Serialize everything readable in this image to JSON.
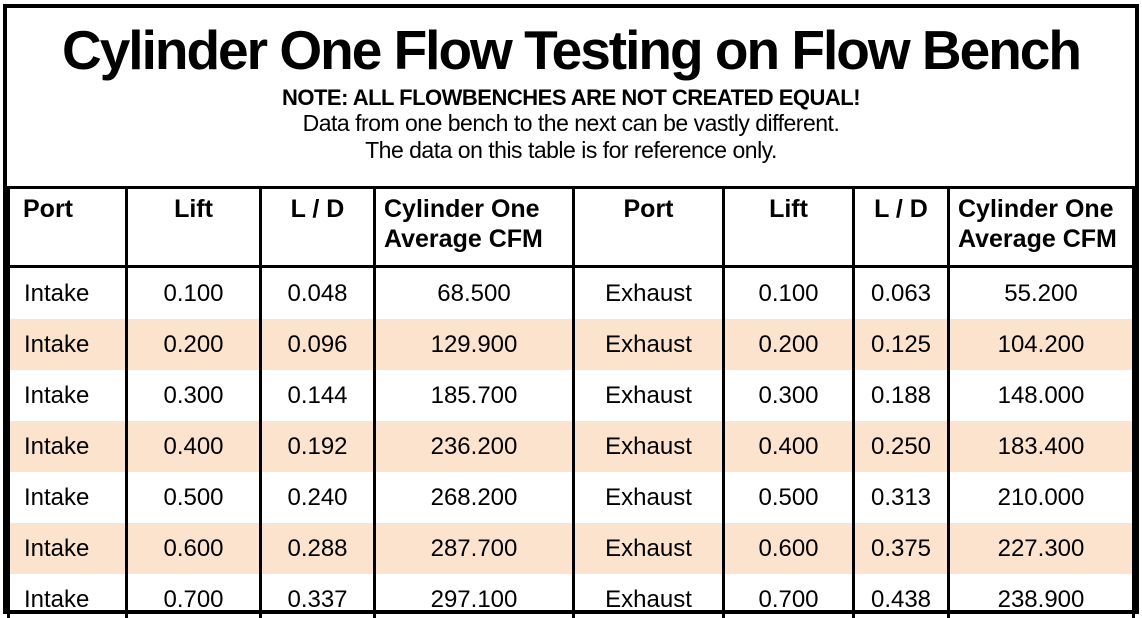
{
  "title": "Cylinder One Flow Testing on Flow Bench",
  "note": {
    "line1": "NOTE: ALL FLOWBENCHES ARE NOT CREATED EQUAL!",
    "line2": "Data from one bench to the next can be vastly different.",
    "line3": "The data on this table is for reference only."
  },
  "colors": {
    "row_shade": "#fbe3cd",
    "border": "#000000",
    "text": "#000000",
    "background": "#ffffff"
  },
  "table": {
    "headers": [
      "Port",
      "Lift",
      "L / D",
      "Cylinder One Average CFM",
      "Port",
      "Lift",
      "L / D",
      "Cylinder One Average CFM"
    ]
  },
  "chart_data": {
    "type": "table",
    "title": "Cylinder One Flow Testing on Flow Bench",
    "columns": [
      "Port",
      "Lift",
      "L / D",
      "Cylinder One Average CFM",
      "Port",
      "Lift",
      "L / D",
      "Cylinder One Average CFM"
    ],
    "rows": [
      [
        "Intake",
        "0.100",
        "0.048",
        "68.500",
        "Exhaust",
        "0.100",
        "0.063",
        "55.200"
      ],
      [
        "Intake",
        "0.200",
        "0.096",
        "129.900",
        "Exhaust",
        "0.200",
        "0.125",
        "104.200"
      ],
      [
        "Intake",
        "0.300",
        "0.144",
        "185.700",
        "Exhaust",
        "0.300",
        "0.188",
        "148.000"
      ],
      [
        "Intake",
        "0.400",
        "0.192",
        "236.200",
        "Exhaust",
        "0.400",
        "0.250",
        "183.400"
      ],
      [
        "Intake",
        "0.500",
        "0.240",
        "268.200",
        "Exhaust",
        "0.500",
        "0.313",
        "210.000"
      ],
      [
        "Intake",
        "0.600",
        "0.288",
        "287.700",
        "Exhaust",
        "0.600",
        "0.375",
        "227.300"
      ],
      [
        "Intake",
        "0.700",
        "0.337",
        "297.100",
        "Exhaust",
        "0.700",
        "0.438",
        "238.900"
      ]
    ],
    "shaded_row_indices": [
      1,
      3,
      5
    ],
    "layout": "two side-by-side 4-column groups: intake (left), exhaust (right)"
  }
}
